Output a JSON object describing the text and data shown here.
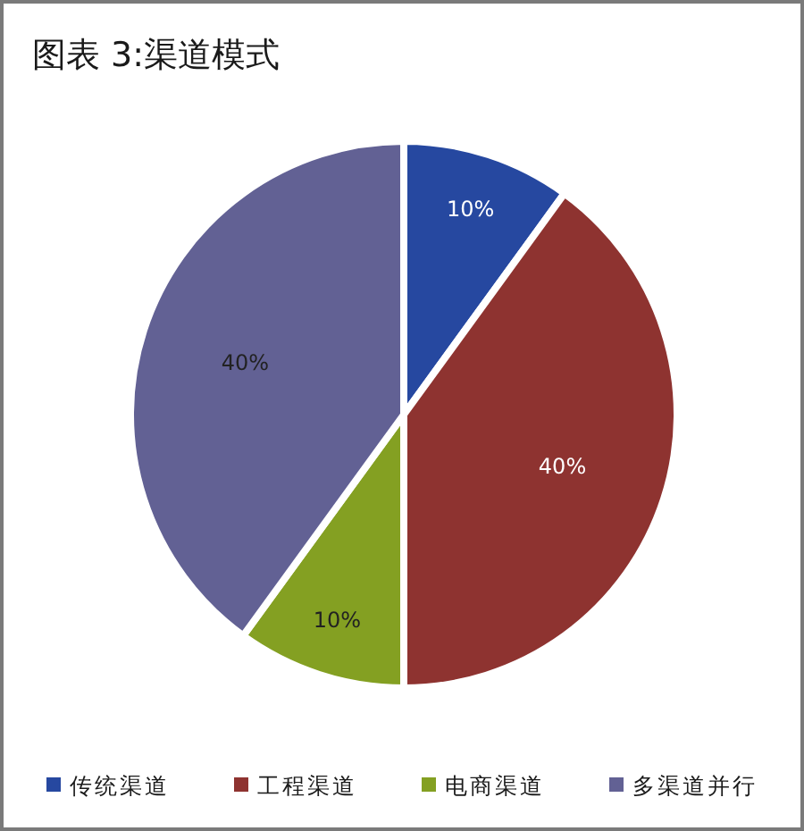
{
  "chart_data": {
    "type": "pie",
    "title": "图表 3:渠道模式",
    "categories": [
      "传统渠道",
      "工程渠道",
      "电商渠道",
      "多渠道并行"
    ],
    "values": [
      10,
      40,
      10,
      40
    ],
    "colors": [
      "#2648a0",
      "#8e3330",
      "#84a022",
      "#626194"
    ],
    "value_labels": [
      "10%",
      "40%",
      "10%",
      "40%"
    ],
    "legend": "bottom"
  }
}
